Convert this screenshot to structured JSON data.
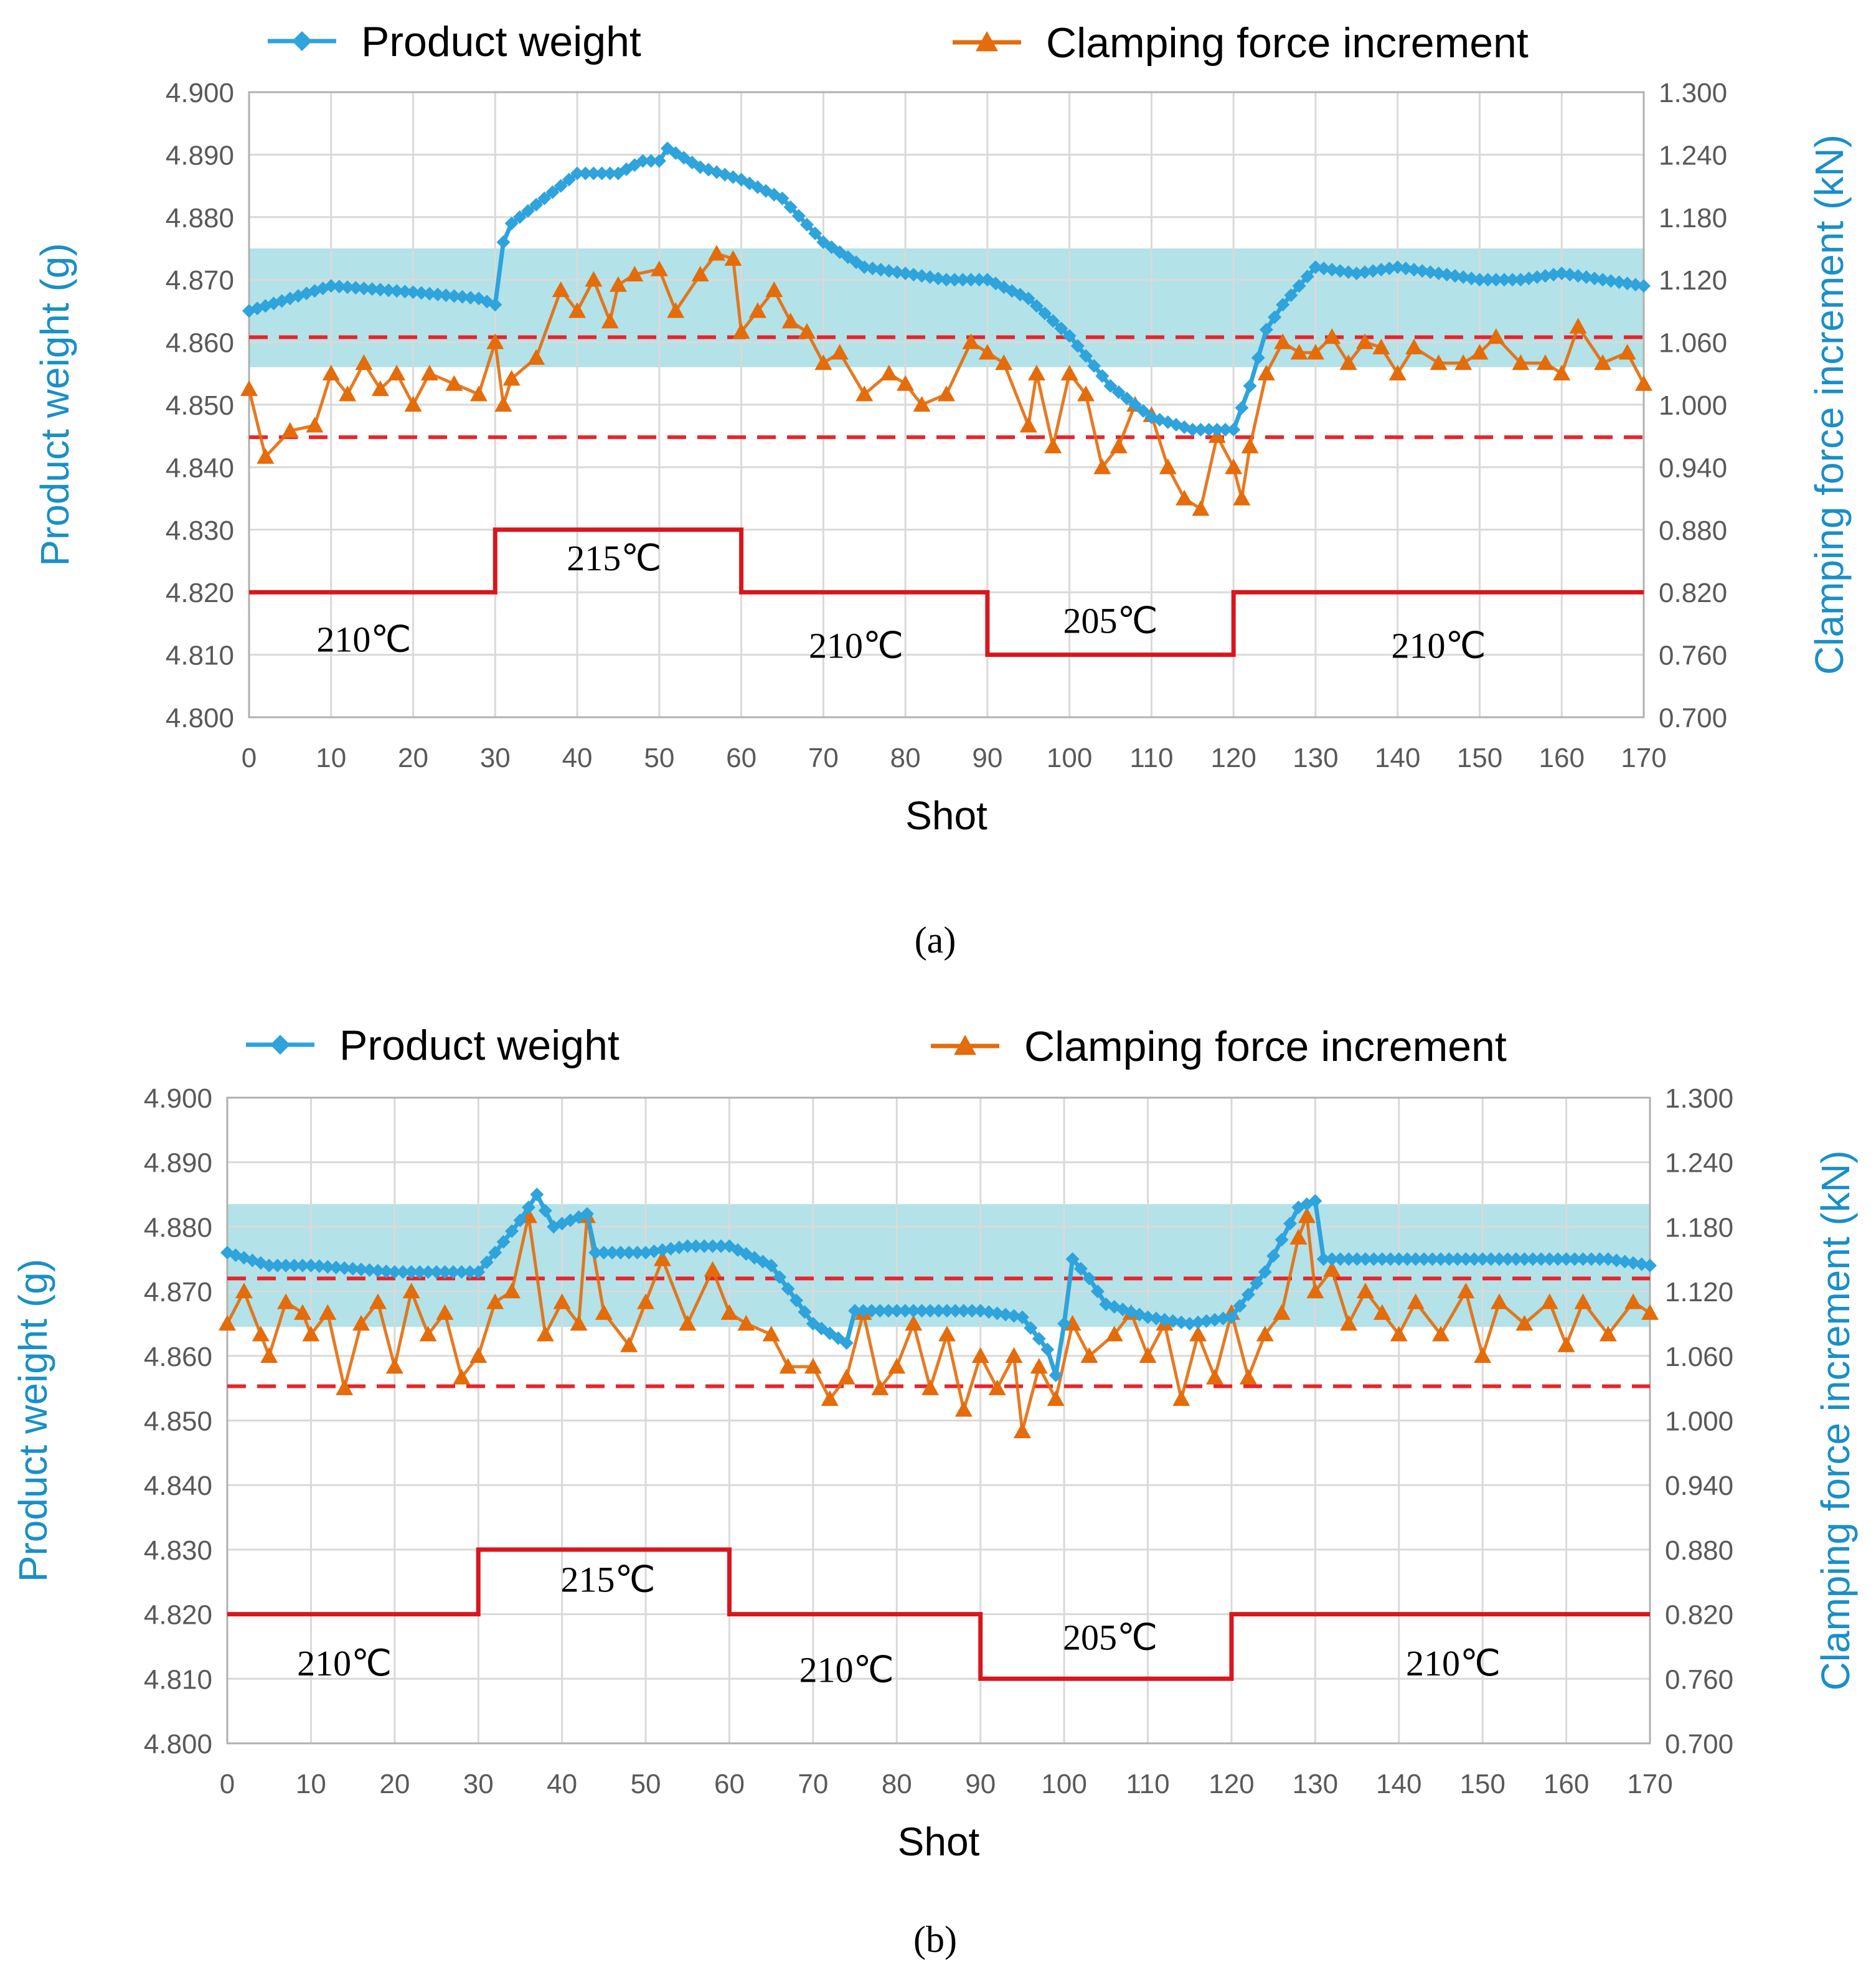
{
  "colors": {
    "weight": "#2ea3dc",
    "clamp": "#e46c0a",
    "band": "#a6dde4",
    "limit": "#e8242a",
    "temp": "#d9161c",
    "grid": "#d9d9d9",
    "frame": "#b0b0b0"
  },
  "chart_data": [
    {
      "type": "line",
      "caption": "(a)",
      "xlabel": "Shot",
      "ylabel_left": "Product weight (g)",
      "ylabel_right": "Clamping force increment (kN)",
      "xlim": [
        0,
        170
      ],
      "ylim_left": [
        4.8,
        4.9
      ],
      "ylim_right": [
        0.7,
        1.3
      ],
      "x_ticks": [
        "0",
        "10",
        "20",
        "30",
        "40",
        "50",
        "60",
        "70",
        "80",
        "90",
        "100",
        "110",
        "120",
        "130",
        "140",
        "150",
        "160",
        "170"
      ],
      "y_left_ticks": [
        "4.900",
        "4.890",
        "4.880",
        "4.870",
        "4.860",
        "4.850",
        "4.840",
        "4.830",
        "4.820",
        "4.810",
        "4.800"
      ],
      "y_right_ticks": [
        "1.300",
        "1.240",
        "1.180",
        "1.120",
        "1.060",
        "1.000",
        "0.940",
        "0.880",
        "0.820",
        "0.760",
        "0.700"
      ],
      "legend": {
        "weight": "Product weight",
        "clamp": "Clamping force increment"
      },
      "band_left": [
        4.856,
        4.875
      ],
      "limits_left": [
        4.8608,
        4.8448
      ],
      "temperature_steps": [
        [
          0,
          4.82
        ],
        [
          30,
          4.82
        ],
        [
          30,
          4.83
        ],
        [
          60,
          4.83
        ],
        [
          60,
          4.82
        ],
        [
          90,
          4.82
        ],
        [
          90,
          4.81
        ],
        [
          120,
          4.81
        ],
        [
          120,
          4.82
        ],
        [
          170,
          4.82
        ]
      ],
      "temperature_labels": [
        {
          "text": "210℃",
          "x": 14,
          "y": 4.8105
        },
        {
          "text": "215℃",
          "x": 44.5,
          "y": 4.8235
        },
        {
          "text": "210℃",
          "x": 74,
          "y": 4.8095
        },
        {
          "text": "205℃",
          "x": 105,
          "y": 4.8135
        },
        {
          "text": "210℃",
          "x": 145,
          "y": 4.8095
        }
      ],
      "weight_points": [
        [
          0,
          4.865
        ],
        [
          10,
          4.869
        ],
        [
          20,
          4.868
        ],
        [
          28,
          4.867
        ],
        [
          30,
          4.866
        ],
        [
          31,
          4.876
        ],
        [
          32,
          4.879
        ],
        [
          35,
          4.882
        ],
        [
          38,
          4.885
        ],
        [
          40,
          4.887
        ],
        [
          45,
          4.887
        ],
        [
          48,
          4.889
        ],
        [
          50,
          4.889
        ],
        [
          51,
          4.891
        ],
        [
          55,
          4.888
        ],
        [
          60,
          4.886
        ],
        [
          65,
          4.883
        ],
        [
          70,
          4.876
        ],
        [
          75,
          4.872
        ],
        [
          80,
          4.871
        ],
        [
          85,
          4.87
        ],
        [
          90,
          4.87
        ],
        [
          95,
          4.867
        ],
        [
          100,
          4.861
        ],
        [
          105,
          4.853
        ],
        [
          110,
          4.848
        ],
        [
          115,
          4.846
        ],
        [
          120,
          4.846
        ],
        [
          122,
          4.853
        ],
        [
          124,
          4.862
        ],
        [
          126,
          4.866
        ],
        [
          130,
          4.872
        ],
        [
          135,
          4.871
        ],
        [
          140,
          4.872
        ],
        [
          145,
          4.871
        ],
        [
          150,
          4.87
        ],
        [
          155,
          4.87
        ],
        [
          160,
          4.871
        ],
        [
          165,
          4.87
        ],
        [
          170,
          4.869
        ]
      ],
      "clamp_points": [
        [
          0,
          1.015
        ],
        [
          2,
          0.95
        ],
        [
          5,
          0.975
        ],
        [
          8,
          0.98
        ],
        [
          10,
          1.03
        ],
        [
          12,
          1.01
        ],
        [
          14,
          1.04
        ],
        [
          16,
          1.015
        ],
        [
          18,
          1.03
        ],
        [
          20,
          1.0
        ],
        [
          22,
          1.03
        ],
        [
          25,
          1.02
        ],
        [
          28,
          1.01
        ],
        [
          30,
          1.06
        ],
        [
          31,
          1.0
        ],
        [
          32,
          1.025
        ],
        [
          35,
          1.045
        ],
        [
          38,
          1.11
        ],
        [
          40,
          1.09
        ],
        [
          42,
          1.12
        ],
        [
          44,
          1.08
        ],
        [
          45,
          1.115
        ],
        [
          47,
          1.125
        ],
        [
          50,
          1.13
        ],
        [
          52,
          1.09
        ],
        [
          55,
          1.125
        ],
        [
          57,
          1.145
        ],
        [
          59,
          1.14
        ],
        [
          60,
          1.07
        ],
        [
          62,
          1.09
        ],
        [
          64,
          1.11
        ],
        [
          66,
          1.08
        ],
        [
          68,
          1.07
        ],
        [
          70,
          1.04
        ],
        [
          72,
          1.05
        ],
        [
          75,
          1.01
        ],
        [
          78,
          1.03
        ],
        [
          80,
          1.02
        ],
        [
          82,
          1.0
        ],
        [
          85,
          1.01
        ],
        [
          88,
          1.06
        ],
        [
          90,
          1.05
        ],
        [
          92,
          1.04
        ],
        [
          95,
          0.98
        ],
        [
          96,
          1.03
        ],
        [
          98,
          0.96
        ],
        [
          100,
          1.03
        ],
        [
          102,
          1.01
        ],
        [
          104,
          0.94
        ],
        [
          106,
          0.96
        ],
        [
          108,
          1.0
        ],
        [
          110,
          0.99
        ],
        [
          112,
          0.94
        ],
        [
          114,
          0.91
        ],
        [
          116,
          0.9
        ],
        [
          118,
          0.97
        ],
        [
          120,
          0.94
        ],
        [
          121,
          0.91
        ],
        [
          122,
          0.96
        ],
        [
          124,
          1.03
        ],
        [
          126,
          1.06
        ],
        [
          128,
          1.05
        ],
        [
          130,
          1.05
        ],
        [
          132,
          1.065
        ],
        [
          134,
          1.04
        ],
        [
          136,
          1.06
        ],
        [
          138,
          1.055
        ],
        [
          140,
          1.03
        ],
        [
          142,
          1.055
        ],
        [
          145,
          1.04
        ],
        [
          148,
          1.04
        ],
        [
          150,
          1.05
        ],
        [
          152,
          1.065
        ],
        [
          155,
          1.04
        ],
        [
          158,
          1.04
        ],
        [
          160,
          1.03
        ],
        [
          162,
          1.075
        ],
        [
          165,
          1.04
        ],
        [
          168,
          1.05
        ],
        [
          170,
          1.02
        ]
      ]
    },
    {
      "type": "line",
      "caption": "(b)",
      "xlabel": "Shot",
      "ylabel_left": "Product weight (g)",
      "ylabel_right": "Clamping force increment (kN)",
      "xlim": [
        0,
        170
      ],
      "ylim_left": [
        4.8,
        4.9
      ],
      "ylim_right": [
        0.7,
        1.3
      ],
      "x_ticks": [
        "0",
        "10",
        "20",
        "30",
        "40",
        "50",
        "60",
        "70",
        "80",
        "90",
        "100",
        "110",
        "120",
        "130",
        "140",
        "150",
        "160",
        "170"
      ],
      "y_left_ticks": [
        "4.900",
        "4.890",
        "4.880",
        "4.870",
        "4.860",
        "4.850",
        "4.840",
        "4.830",
        "4.820",
        "4.810",
        "4.800"
      ],
      "y_right_ticks": [
        "1.300",
        "1.240",
        "1.180",
        "1.120",
        "1.060",
        "1.000",
        "0.940",
        "0.880",
        "0.820",
        "0.760",
        "0.700"
      ],
      "legend": {
        "weight": "Product weight",
        "clamp": "Clamping force increment"
      },
      "band_left": [
        4.8645,
        4.8835
      ],
      "limits_left": [
        4.872,
        4.8553
      ],
      "temperature_steps": [
        [
          0,
          4.82
        ],
        [
          30,
          4.82
        ],
        [
          30,
          4.83
        ],
        [
          60,
          4.83
        ],
        [
          60,
          4.82
        ],
        [
          90,
          4.82
        ],
        [
          90,
          4.81
        ],
        [
          120,
          4.81
        ],
        [
          120,
          4.82
        ],
        [
          170,
          4.82
        ]
      ],
      "temperature_labels": [
        {
          "text": "210℃",
          "x": 14,
          "y": 4.8105
        },
        {
          "text": "215℃",
          "x": 45.5,
          "y": 4.8235
        },
        {
          "text": "210℃",
          "x": 74,
          "y": 4.8095
        },
        {
          "text": "205℃",
          "x": 105.5,
          "y": 4.8145
        },
        {
          "text": "210℃",
          "x": 146.5,
          "y": 4.8105
        }
      ],
      "weight_points": [
        [
          0,
          4.876
        ],
        [
          5,
          4.874
        ],
        [
          10,
          4.874
        ],
        [
          20,
          4.873
        ],
        [
          28,
          4.873
        ],
        [
          30,
          4.873
        ],
        [
          32,
          4.876
        ],
        [
          35,
          4.881
        ],
        [
          37,
          4.885
        ],
        [
          39,
          4.88
        ],
        [
          41,
          4.881
        ],
        [
          43,
          4.882
        ],
        [
          44,
          4.876
        ],
        [
          50,
          4.876
        ],
        [
          55,
          4.877
        ],
        [
          60,
          4.877
        ],
        [
          65,
          4.874
        ],
        [
          70,
          4.865
        ],
        [
          74,
          4.862
        ],
        [
          75,
          4.867
        ],
        [
          80,
          4.867
        ],
        [
          85,
          4.867
        ],
        [
          90,
          4.867
        ],
        [
          95,
          4.866
        ],
        [
          98,
          4.861
        ],
        [
          99,
          4.857
        ],
        [
          100,
          4.865
        ],
        [
          101,
          4.875
        ],
        [
          103,
          4.872
        ],
        [
          105,
          4.868
        ],
        [
          110,
          4.866
        ],
        [
          115,
          4.865
        ],
        [
          120,
          4.866
        ],
        [
          124,
          4.873
        ],
        [
          126,
          4.878
        ],
        [
          128,
          4.883
        ],
        [
          130,
          4.884
        ],
        [
          131,
          4.875
        ],
        [
          135,
          4.875
        ],
        [
          140,
          4.875
        ],
        [
          150,
          4.875
        ],
        [
          160,
          4.875
        ],
        [
          165,
          4.875
        ],
        [
          170,
          4.874
        ]
      ],
      "clamp_points": [
        [
          0,
          1.09
        ],
        [
          2,
          1.12
        ],
        [
          4,
          1.08
        ],
        [
          5,
          1.06
        ],
        [
          7,
          1.11
        ],
        [
          9,
          1.1
        ],
        [
          10,
          1.08
        ],
        [
          12,
          1.1
        ],
        [
          14,
          1.03
        ],
        [
          16,
          1.09
        ],
        [
          18,
          1.11
        ],
        [
          20,
          1.05
        ],
        [
          22,
          1.12
        ],
        [
          24,
          1.08
        ],
        [
          26,
          1.1
        ],
        [
          28,
          1.04
        ],
        [
          30,
          1.06
        ],
        [
          32,
          1.11
        ],
        [
          34,
          1.12
        ],
        [
          36,
          1.19
        ],
        [
          38,
          1.08
        ],
        [
          40,
          1.11
        ],
        [
          42,
          1.09
        ],
        [
          43,
          1.19
        ],
        [
          45,
          1.1
        ],
        [
          48,
          1.07
        ],
        [
          50,
          1.11
        ],
        [
          52,
          1.15
        ],
        [
          55,
          1.09
        ],
        [
          58,
          1.14
        ],
        [
          60,
          1.1
        ],
        [
          62,
          1.09
        ],
        [
          65,
          1.08
        ],
        [
          67,
          1.05
        ],
        [
          70,
          1.05
        ],
        [
          72,
          1.02
        ],
        [
          74,
          1.04
        ],
        [
          76,
          1.1
        ],
        [
          78,
          1.03
        ],
        [
          80,
          1.05
        ],
        [
          82,
          1.09
        ],
        [
          84,
          1.03
        ],
        [
          86,
          1.08
        ],
        [
          88,
          1.01
        ],
        [
          90,
          1.06
        ],
        [
          92,
          1.03
        ],
        [
          94,
          1.06
        ],
        [
          95,
          0.99
        ],
        [
          97,
          1.05
        ],
        [
          99,
          1.02
        ],
        [
          101,
          1.09
        ],
        [
          103,
          1.06
        ],
        [
          106,
          1.08
        ],
        [
          108,
          1.1
        ],
        [
          110,
          1.06
        ],
        [
          112,
          1.09
        ],
        [
          114,
          1.02
        ],
        [
          116,
          1.08
        ],
        [
          118,
          1.04
        ],
        [
          120,
          1.1
        ],
        [
          122,
          1.04
        ],
        [
          124,
          1.08
        ],
        [
          126,
          1.1
        ],
        [
          128,
          1.17
        ],
        [
          129,
          1.19
        ],
        [
          130,
          1.12
        ],
        [
          132,
          1.14
        ],
        [
          134,
          1.09
        ],
        [
          136,
          1.12
        ],
        [
          138,
          1.1
        ],
        [
          140,
          1.08
        ],
        [
          142,
          1.11
        ],
        [
          145,
          1.08
        ],
        [
          148,
          1.12
        ],
        [
          150,
          1.06
        ],
        [
          152,
          1.11
        ],
        [
          155,
          1.09
        ],
        [
          158,
          1.11
        ],
        [
          160,
          1.07
        ],
        [
          162,
          1.11
        ],
        [
          165,
          1.08
        ],
        [
          168,
          1.11
        ],
        [
          170,
          1.1
        ]
      ]
    }
  ]
}
